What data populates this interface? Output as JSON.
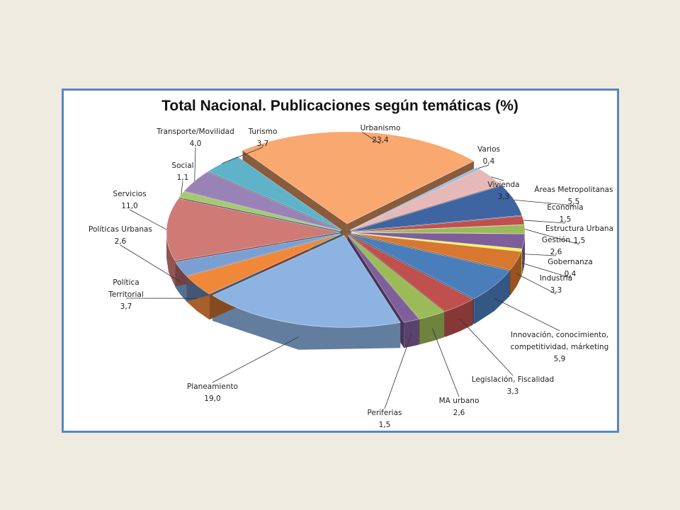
{
  "chart_data": {
    "type": "pie",
    "title": "Total Nacional. Publicaciones según temáticas (%)",
    "categories": [
      "Urbanismo",
      "Varios",
      "Vivienda",
      "Áreas Metropolitanas",
      "Economía",
      "Estructura Urbana",
      "Gestión",
      "Gobernanza",
      "Industria",
      "Innovación, conocimiento, competitividad, márketing",
      "Legislación, Fiscalidad",
      "MA urbano",
      "Periferias",
      "Planeamiento",
      "Política Territorial",
      "Políticas Urbanas",
      "Servicios",
      "Social",
      "Transporte/Movilidad",
      "Turismo"
    ],
    "values": [
      23.4,
      0.4,
      3.3,
      5.5,
      1.5,
      1.5,
      2.6,
      0.4,
      3.3,
      5.9,
      3.3,
      2.6,
      1.5,
      19.0,
      3.7,
      2.6,
      11.0,
      1.1,
      4.0,
      3.7
    ],
    "value_labels": [
      "23,4",
      "0,4",
      "3,3",
      "5,5",
      "1,5",
      "1,5",
      "2,6",
      "0,4",
      "3,3",
      "5,9",
      "3,3",
      "2,6",
      "1,5",
      "19,0",
      "3,7",
      "2,6",
      "11,0",
      "1,1",
      "4,0",
      "3,7"
    ],
    "colors": [
      "#f9a870",
      "#9dbbe3",
      "#e6b9b8",
      "#3e64a2",
      "#c0504d",
      "#9bbb59",
      "#7f5f9b",
      "#ffff33",
      "#d8772f",
      "#4a7ebb",
      "#c0504d",
      "#9bbb59",
      "#7f5f9b",
      "#8db3e2",
      "#f0883a",
      "#7a9fd3",
      "#d07a76",
      "#a6c96a",
      "#9982b5",
      "#5fb3c8"
    ]
  }
}
